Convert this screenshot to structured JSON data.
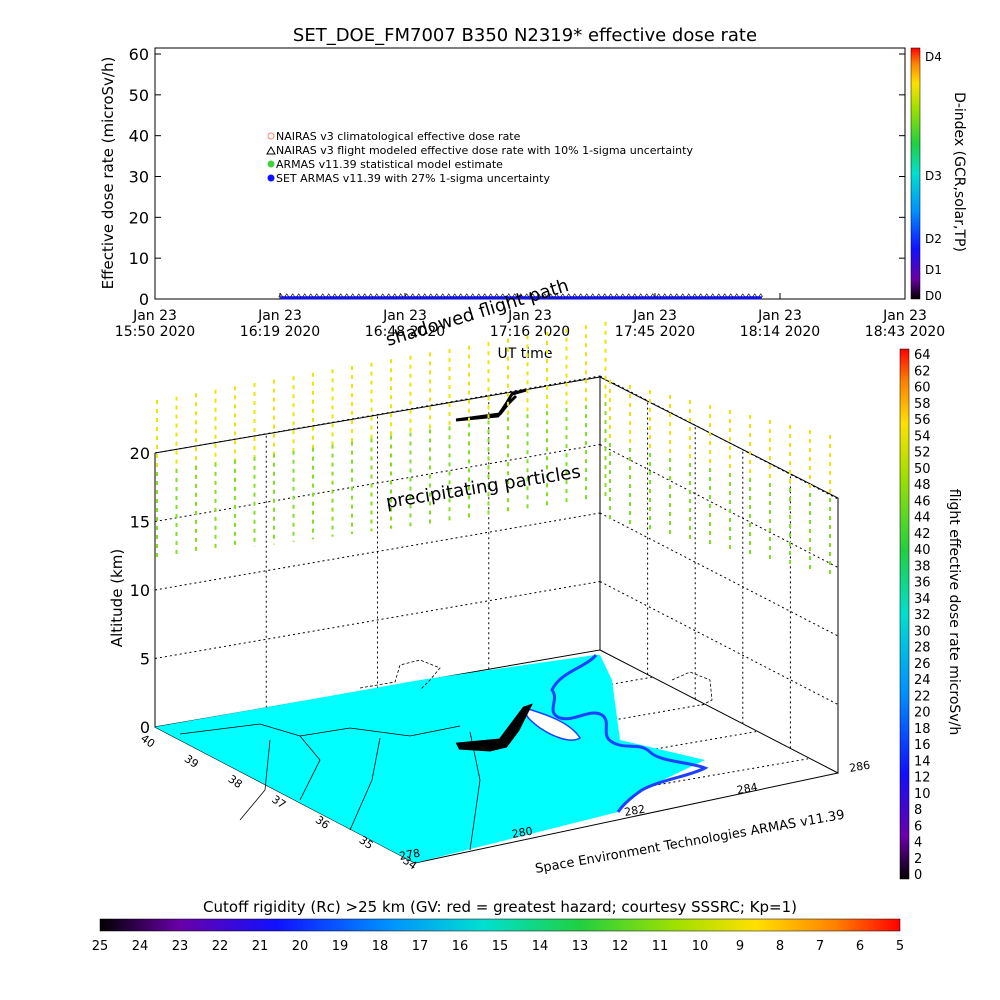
{
  "chart_data": [
    {
      "type": "line",
      "title": "SET_DOE_FM7007  B350 N2319* effective dose rate",
      "ylabel": "Effective dose rate (microSv/h)",
      "xlabel": "UT time",
      "ylim": [
        0,
        60
      ],
      "yticks": [
        0,
        10,
        20,
        30,
        40,
        50,
        60
      ],
      "x_ticks": [
        {
          "line1": "Jan 23",
          "line2": "15:50 2020"
        },
        {
          "line1": "Jan 23",
          "line2": "16:19 2020"
        },
        {
          "line1": "Jan 23",
          "line2": "16:48 2020"
        },
        {
          "line1": "Jan 23",
          "line2": "17:16 2020"
        },
        {
          "line1": "Jan 23",
          "line2": "17:45 2020"
        },
        {
          "line1": "Jan 23",
          "line2": "18:14 2020"
        },
        {
          "line1": "Jan 23",
          "line2": "18:43 2020"
        }
      ],
      "xlim_minutes": [
        0,
        173
      ],
      "series": [
        {
          "name": "NAIRAS v3 climatological effective dose rate",
          "color": "#ff8080",
          "marker": "circle"
        },
        {
          "name": "NAIRAS v3 flight modeled effective dose rate with 10% 1-sigma uncertainty",
          "color": "#000000",
          "marker": "triangle"
        },
        {
          "name": "ARMAS v11.39 statistical model estimate",
          "color": "#40d040",
          "marker": "dot"
        },
        {
          "name": "SET ARMAS v11.39 with 27% 1-sigma uncertainty",
          "color": "#1010ff",
          "marker": "dot",
          "x_range_minutes": [
            29,
            140
          ],
          "values": [
            0.3,
            0.3
          ]
        }
      ],
      "legend": "upper-left",
      "colorbar": {
        "label": "D-index (GCR,solar,TP)",
        "labels": [
          "D4",
          "D3",
          "D2",
          "D1",
          "D0"
        ]
      }
    },
    {
      "type": "scatter",
      "zlabel": "Altitude (km)",
      "zticks": [
        0,
        5,
        10,
        15,
        20
      ],
      "lat_ticks": [
        40,
        39,
        38,
        37,
        36,
        35,
        34
      ],
      "lon_ticks": [
        278,
        280,
        282,
        284,
        286
      ],
      "annotations": [
        "shadowed flight path",
        "precipitating particles"
      ],
      "credit": "Space Environment Technologies ARMAS v11.39",
      "colorbar": {
        "label": "flight effective dose rate microSv/h",
        "ticks": [
          0,
          2,
          4,
          6,
          8,
          10,
          12,
          14,
          16,
          18,
          20,
          22,
          24,
          26,
          28,
          30,
          32,
          34,
          36,
          38,
          40,
          42,
          44,
          46,
          48,
          50,
          52,
          54,
          56,
          58,
          60,
          62,
          64
        ]
      }
    }
  ],
  "bottom_colorbar": {
    "title": "Cutoff rigidity (Rc) >25 km (GV: red = greatest hazard; courtesy SSSRC; Kp=1)",
    "ticks": [
      "25",
      "24",
      "23",
      "22",
      "21",
      "20",
      "19",
      "18",
      "17",
      "16",
      "15",
      "14",
      "13",
      "12",
      "11",
      "10",
      "9",
      "8",
      "7",
      "6",
      "5"
    ]
  },
  "colors": {
    "map_fill": "#00ffff",
    "coast": "#2040ff",
    "particles_high": "#e8e800",
    "particles_low": "#80e020",
    "flight_path": "#000000"
  }
}
